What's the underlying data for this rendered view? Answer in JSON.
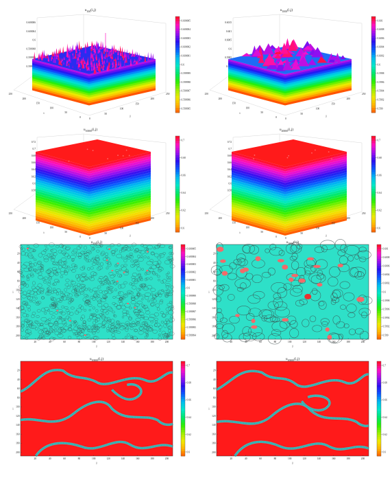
{
  "colorbar_colors": [
    "#ff4d00",
    "#ffb000",
    "#f3e800",
    "#9ef000",
    "#2df000",
    "#00e86a",
    "#00e8c8",
    "#00bcf0",
    "#0a58ff",
    "#2a10f0",
    "#9a10f0",
    "#ff10c8",
    "#ff1030"
  ],
  "chart_data": [
    {
      "type": "surface",
      "title": "u",
      "title_sub": "100",
      "title_suffix": "(i,j)",
      "xlabel": "i",
      "ylabel": "j",
      "x_ticks": [
        "0",
        "50",
        "100",
        "150",
        "200",
        "250"
      ],
      "y_ticks": [
        "250",
        "200",
        "150",
        "100",
        "50",
        "0"
      ],
      "z_ticks": [
        "0.600006",
        "0.600004",
        "0.6",
        "0.599998",
        "0.599996",
        "0.599994"
      ],
      "colorbar_ticks": [
        "0.600005",
        "0.600004",
        "0.600003",
        "0.600002",
        "0.600001",
        "0.6",
        "0.599999",
        "0.599998",
        "0.599997",
        "0.599996",
        "0.599995"
      ],
      "style": "rough",
      "variant": 0
    },
    {
      "type": "surface",
      "title": "u",
      "title_sub": "1000",
      "title_suffix": "(i,j)",
      "xlabel": "i",
      "ylabel": "j",
      "x_ticks": [
        "0",
        "50",
        "100",
        "150",
        "200",
        "250"
      ],
      "y_ticks": [
        "250",
        "200",
        "150",
        "100",
        "50",
        "0"
      ],
      "z_ticks": [
        "0.6015",
        "0.601",
        "0.6005",
        "0.6",
        "0.5995",
        "0.599"
      ],
      "colorbar_ticks": [
        "0.601",
        "0.6008",
        "0.6006",
        "0.6004",
        "0.6002",
        "0.6",
        "0.5998",
        "0.5996",
        "0.5994",
        "0.5992",
        "0.599"
      ],
      "style": "bumpy",
      "variant": 1
    },
    {
      "type": "surface",
      "title": "u",
      "title_sub": "10000",
      "title_suffix": "(i,j)",
      "xlabel": "i",
      "ylabel": "j",
      "x_ticks": [
        "0",
        "50",
        "100",
        "150",
        "200",
        "250"
      ],
      "y_ticks": [
        "250",
        "200",
        "150",
        "100",
        "50",
        "0"
      ],
      "z_ticks": [
        "0.72",
        "0.7",
        "0.68",
        "0.66",
        "0.64",
        "0.62",
        "0.6",
        "0.58"
      ],
      "colorbar_ticks": [
        "0.7",
        "0.68",
        "0.66",
        "0.64",
        "0.62",
        "0.6"
      ],
      "style": "block",
      "variant": 2
    },
    {
      "type": "surface",
      "title": "u",
      "title_sub": "20000",
      "title_suffix": "(i,j)",
      "xlabel": "i",
      "ylabel": "j",
      "x_ticks": [
        "0",
        "50",
        "100",
        "150",
        "200",
        "250"
      ],
      "y_ticks": [
        "250",
        "200",
        "150",
        "100",
        "50",
        "0"
      ],
      "z_ticks": [
        "0.72",
        "0.7",
        "0.68",
        "0.66",
        "0.64",
        "0.62",
        "0.6",
        "0.58"
      ],
      "colorbar_ticks": [
        "0.7",
        "0.68",
        "0.66",
        "0.64",
        "0.62",
        "0.6"
      ],
      "style": "block",
      "variant": 3
    },
    {
      "type": "heatmap",
      "title": "u",
      "title_sub": "100",
      "title_suffix": "(i,j)",
      "xlabel": "j",
      "ylabel": "i",
      "x_ticks": [
        "20",
        "40",
        "60",
        "80",
        "100",
        "120",
        "140",
        "160",
        "180",
        "200"
      ],
      "y_ticks": [
        "20",
        "40",
        "60",
        "80",
        "100",
        "120",
        "140",
        "160",
        "180",
        "200"
      ],
      "colorbar_ticks": [
        "0.600005",
        "0.600004",
        "0.600003",
        "0.600002",
        "0.600001",
        "0.6",
        "0.599999",
        "0.599998",
        "0.599997",
        "0.599996",
        "0.599995",
        "0.599994"
      ],
      "style": "fine",
      "variant": 0
    },
    {
      "type": "heatmap",
      "title": "u",
      "title_sub": "1000",
      "title_suffix": "(i,j)",
      "xlabel": "j",
      "ylabel": "i",
      "x_ticks": [
        "20",
        "40",
        "60",
        "80",
        "100",
        "120",
        "140",
        "160",
        "180",
        "200"
      ],
      "y_ticks": [
        "20",
        "40",
        "60",
        "80",
        "100",
        "120",
        "140",
        "160",
        "180",
        "200"
      ],
      "colorbar_ticks": [
        "0.601",
        "0.6008",
        "0.6006",
        "0.6004",
        "0.6002",
        "0.6",
        "0.5998",
        "0.5996",
        "0.5994",
        "0.5992",
        "0.599"
      ],
      "style": "coarse",
      "variant": 1
    },
    {
      "type": "heatmap",
      "title": "u",
      "title_sub": "10000",
      "title_suffix": "(i,j)",
      "xlabel": "j",
      "ylabel": "i",
      "x_ticks": [
        "20",
        "40",
        "60",
        "80",
        "100",
        "120",
        "140",
        "160",
        "180",
        "200"
      ],
      "y_ticks": [
        "20",
        "40",
        "60",
        "80",
        "100",
        "120",
        "140",
        "160",
        "180",
        "200"
      ],
      "colorbar_ticks": [
        "0.7",
        "0.68",
        "0.66",
        "0.64",
        "0.62",
        "0.6"
      ],
      "style": "interface",
      "variant": 0
    },
    {
      "type": "heatmap",
      "title": "u",
      "title_sub": "20000",
      "title_suffix": "(i,j)",
      "xlabel": "j",
      "ylabel": "i",
      "x_ticks": [
        "20",
        "40",
        "60",
        "80",
        "100",
        "120",
        "140",
        "160",
        "180",
        "200"
      ],
      "y_ticks": [
        "20",
        "40",
        "60",
        "80",
        "100",
        "120",
        "140",
        "160",
        "180",
        "200"
      ],
      "colorbar_ticks": [
        "0.7",
        "0.68",
        "0.66",
        "0.64",
        "0.62",
        "0.6"
      ],
      "style": "interface",
      "variant": 1
    }
  ]
}
